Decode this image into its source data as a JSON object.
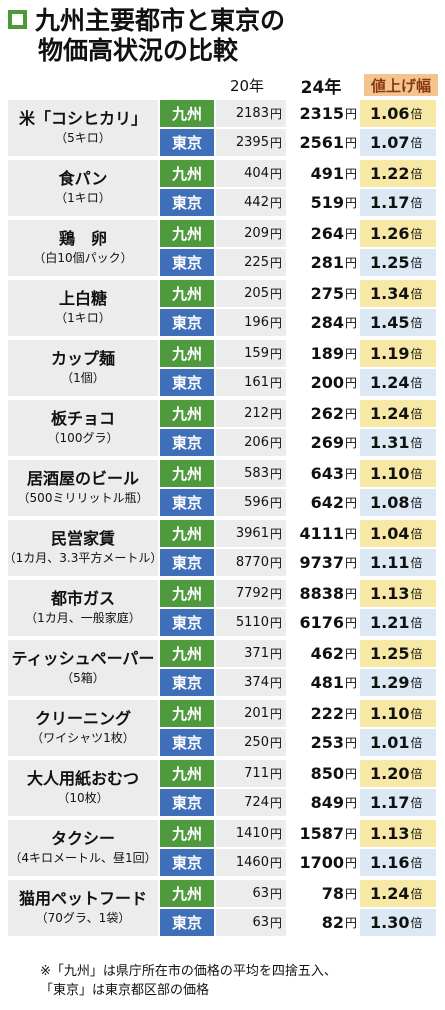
{
  "title": {
    "line1": "九州主要都市と東京の",
    "line2": "物価高状況の比較"
  },
  "headers": {
    "y20": "20年",
    "y24": "24年",
    "ratio": "値上げ幅"
  },
  "regions": {
    "kyushu": "九州",
    "tokyo": "東京"
  },
  "units": {
    "yen": "円",
    "times": "倍"
  },
  "items": [
    {
      "name": "米「コシヒカリ」",
      "sub": "（5キロ）",
      "kyushu": {
        "p20": "2183",
        "p24": "2315",
        "ratio": "1.06"
      },
      "tokyo": {
        "p20": "2395",
        "p24": "2561",
        "ratio": "1.07"
      }
    },
    {
      "name": "食パン",
      "sub": "（1キロ）",
      "kyushu": {
        "p20": "404",
        "p24": "491",
        "ratio": "1.22"
      },
      "tokyo": {
        "p20": "442",
        "p24": "519",
        "ratio": "1.17"
      }
    },
    {
      "name": "鶏　卵",
      "sub": "（白10個パック）",
      "kyushu": {
        "p20": "209",
        "p24": "264",
        "ratio": "1.26"
      },
      "tokyo": {
        "p20": "225",
        "p24": "281",
        "ratio": "1.25"
      }
    },
    {
      "name": "上白糖",
      "sub": "（1キロ）",
      "kyushu": {
        "p20": "205",
        "p24": "275",
        "ratio": "1.34"
      },
      "tokyo": {
        "p20": "196",
        "p24": "284",
        "ratio": "1.45"
      }
    },
    {
      "name": "カップ麺",
      "sub": "（1個）",
      "kyushu": {
        "p20": "159",
        "p24": "189",
        "ratio": "1.19"
      },
      "tokyo": {
        "p20": "161",
        "p24": "200",
        "ratio": "1.24"
      }
    },
    {
      "name": "板チョコ",
      "sub": "（100グラ）",
      "kyushu": {
        "p20": "212",
        "p24": "262",
        "ratio": "1.24"
      },
      "tokyo": {
        "p20": "206",
        "p24": "269",
        "ratio": "1.31"
      }
    },
    {
      "name": "居酒屋のビール",
      "sub": "（500ミリリットル瓶）",
      "kyushu": {
        "p20": "583",
        "p24": "643",
        "ratio": "1.10"
      },
      "tokyo": {
        "p20": "596",
        "p24": "642",
        "ratio": "1.08"
      }
    },
    {
      "name": "民営家賃",
      "sub": "（1カ月、3.3平方メートル）",
      "kyushu": {
        "p20": "3961",
        "p24": "4111",
        "ratio": "1.04"
      },
      "tokyo": {
        "p20": "8770",
        "p24": "9737",
        "ratio": "1.11"
      }
    },
    {
      "name": "都市ガス",
      "sub": "（1カ月、一般家庭）",
      "kyushu": {
        "p20": "7792",
        "p24": "8838",
        "ratio": "1.13"
      },
      "tokyo": {
        "p20": "5110",
        "p24": "6176",
        "ratio": "1.21"
      }
    },
    {
      "name": "ティッシュペーパー",
      "sub": "（5箱）",
      "kyushu": {
        "p20": "371",
        "p24": "462",
        "ratio": "1.25"
      },
      "tokyo": {
        "p20": "374",
        "p24": "481",
        "ratio": "1.29"
      }
    },
    {
      "name": "クリーニング",
      "sub": "（ワイシャツ1枚）",
      "kyushu": {
        "p20": "201",
        "p24": "222",
        "ratio": "1.10"
      },
      "tokyo": {
        "p20": "250",
        "p24": "253",
        "ratio": "1.01"
      }
    },
    {
      "name": "大人用紙おむつ",
      "sub": "（10枚）",
      "kyushu": {
        "p20": "711",
        "p24": "850",
        "ratio": "1.20"
      },
      "tokyo": {
        "p20": "724",
        "p24": "849",
        "ratio": "1.17"
      }
    },
    {
      "name": "タクシー",
      "sub": "（4キロメートル、昼1回）",
      "kyushu": {
        "p20": "1410",
        "p24": "1587",
        "ratio": "1.13"
      },
      "tokyo": {
        "p20": "1460",
        "p24": "1700",
        "ratio": "1.16"
      }
    },
    {
      "name": "猫用ペットフード",
      "sub": "（70グラ、1袋）",
      "kyushu": {
        "p20": "63",
        "p24": "78",
        "ratio": "1.24"
      },
      "tokyo": {
        "p20": "63",
        "p24": "82",
        "ratio": "1.30"
      }
    }
  ],
  "note": {
    "line1": "※「九州」は県庁所在市の価格の平均を四捨五入、",
    "line2": "「東京」は東京都区部の価格"
  },
  "colors": {
    "kyushu": "#4f9a3c",
    "tokyo": "#3f6fb8",
    "ratio_header": "#f3c48f",
    "ratio_kyushu": "#f8e8a6",
    "ratio_tokyo": "#dde8f5"
  }
}
